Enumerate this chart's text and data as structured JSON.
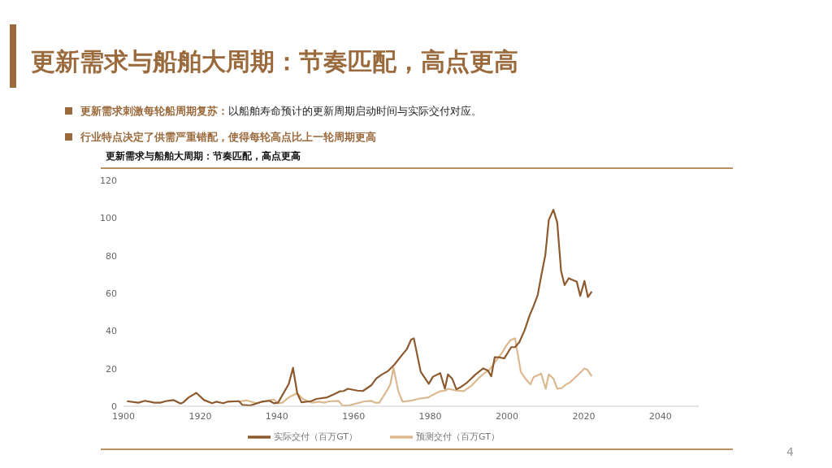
{
  "chart_data": {
    "type": "line",
    "title": "更新需求与船舶大周期：节奏匹配，高点更高",
    "subtitle": "更新需求与船舶大周期：节奏匹配，高点更高",
    "annotations": [
      "更新需求刺激每轮船周期复苏：以船舶寿命预计的更新周期启动时间与实际交付对应。",
      "行业特点决定了供需严重错配，使得每轮高点比上一轮周期更高",
      "4"
    ],
    "series": [
      {
        "name": "预测交付（百万GT）",
        "color": "#dcb88f",
        "x": [
          1930.3,
          1932.1,
          1934.6,
          1936.7,
          1939.2,
          1940.3,
          1941.4,
          1943.1,
          1945.3,
          1946.7,
          1948.1,
          1949.2,
          1951,
          1952.4,
          1953.5,
          1956,
          1957.1,
          1958.9,
          1960.6,
          1962.8,
          1964.6,
          1965.6,
          1966.7,
          1968.9,
          1969.6,
          1970.4,
          1971.7,
          1972.8,
          1975,
          1977,
          1979.5,
          1980.7,
          1982.5,
          1983.9,
          1984.7,
          1986.8,
          1988.7,
          1990.6,
          1992.5,
          1994.3,
          1995.3,
          1996.8,
          1998.9,
          1999.7,
          2000.9,
          2002.1,
          2003.6,
          2004.8,
          2006.1,
          2006.9,
          2008.9,
          2010.1,
          2010.9,
          2012.1,
          2013.1,
          2014.3,
          2015.4,
          2016.4,
          2018.2,
          2020.2,
          2021,
          2022.1
        ],
        "values": [
          2.6,
          3.1,
          1.6,
          2.6,
          3.6,
          1.6,
          1.9,
          4.7,
          6.9,
          4,
          2.6,
          1.9,
          2.4,
          1.9,
          2.6,
          2.9,
          0.4,
          0.4,
          1.4,
          2.6,
          2.9,
          1.9,
          1.9,
          9,
          11.9,
          20.4,
          7.6,
          2.4,
          3,
          4,
          4.7,
          6.1,
          7.9,
          8.3,
          9.3,
          8.3,
          8,
          10.7,
          14.7,
          17.9,
          19,
          23.3,
          29,
          31.9,
          35.1,
          36.1,
          18.3,
          14.7,
          11.6,
          15.4,
          17.3,
          9.3,
          16.9,
          14.7,
          9.3,
          9.7,
          11.6,
          12.6,
          16.1,
          20.1,
          19.3,
          15.9
        ]
      },
      {
        "name": "实际交付（百万GT）",
        "color": "#8c5a2e",
        "x": [
          1900.9,
          1903.9,
          1905.6,
          1908.1,
          1909.6,
          1911,
          1913,
          1914.9,
          1915.6,
          1917,
          1919,
          1921,
          1923.1,
          1924.2,
          1926,
          1927.1,
          1930.1,
          1931,
          1933.1,
          1936,
          1938.1,
          1939.2,
          1940.3,
          1943.1,
          1944.2,
          1945.3,
          1946.4,
          1948.9,
          1950.3,
          1953.1,
          1954.9,
          1956.4,
          1957.4,
          1958.5,
          1961,
          1962.4,
          1964.6,
          1965.9,
          1967.4,
          1968.9,
          1970.6,
          1972.5,
          1973.9,
          1975,
          1975.7,
          1977.5,
          1979.6,
          1980.7,
          1982.6,
          1983.8,
          1984.6,
          1985.7,
          1986.8,
          1987.8,
          1989.6,
          1991.8,
          1993.8,
          1995,
          1995.9,
          1996.8,
          1997.9,
          1999.3,
          2001.1,
          2002.1,
          2003.2,
          2004.6,
          2005.9,
          2006.8,
          2008,
          2008.9,
          2010,
          2010.9,
          2012.1,
          2013.1,
          2014.1,
          2015,
          2016.1,
          2018.2,
          2019.1,
          2020.2,
          2021.1,
          2022.1
        ],
        "values": [
          2.7,
          1.9,
          2.9,
          1.9,
          1.9,
          2.7,
          3.3,
          1.4,
          2.1,
          4.7,
          7.1,
          3.3,
          1.6,
          2.4,
          1.6,
          2.4,
          2.7,
          0.7,
          0.4,
          2.4,
          2.9,
          1.6,
          1.9,
          11.9,
          20.4,
          6.9,
          2.1,
          2.7,
          3.9,
          4.7,
          6.4,
          7.9,
          8.1,
          9.3,
          8.3,
          8.1,
          11.1,
          14.7,
          16.9,
          18.6,
          22,
          26.9,
          30.4,
          35.4,
          36.1,
          18.3,
          11.9,
          15.7,
          17.6,
          9.3,
          16.9,
          14.7,
          9,
          10,
          12.6,
          16.9,
          20.1,
          19,
          15.9,
          26.1,
          26,
          25.4,
          31.4,
          31.4,
          34,
          40.4,
          48.3,
          52.6,
          59,
          69,
          80.4,
          99,
          104.4,
          97.6,
          71.9,
          64.4,
          68,
          66.1,
          58.6,
          66.6,
          58,
          60.9
        ]
      }
    ],
    "xlim": [
      1900,
      2050
    ],
    "xticks": [
      1900,
      1920,
      1940,
      1960,
      1980,
      2000,
      2020,
      2040
    ],
    "ylim": [
      0,
      120
    ],
    "yticks": [
      0,
      20,
      40,
      60,
      80,
      100,
      120
    ],
    "grid": false,
    "legend": "bottom",
    "marker": "none",
    "line_style": "solid"
  }
}
